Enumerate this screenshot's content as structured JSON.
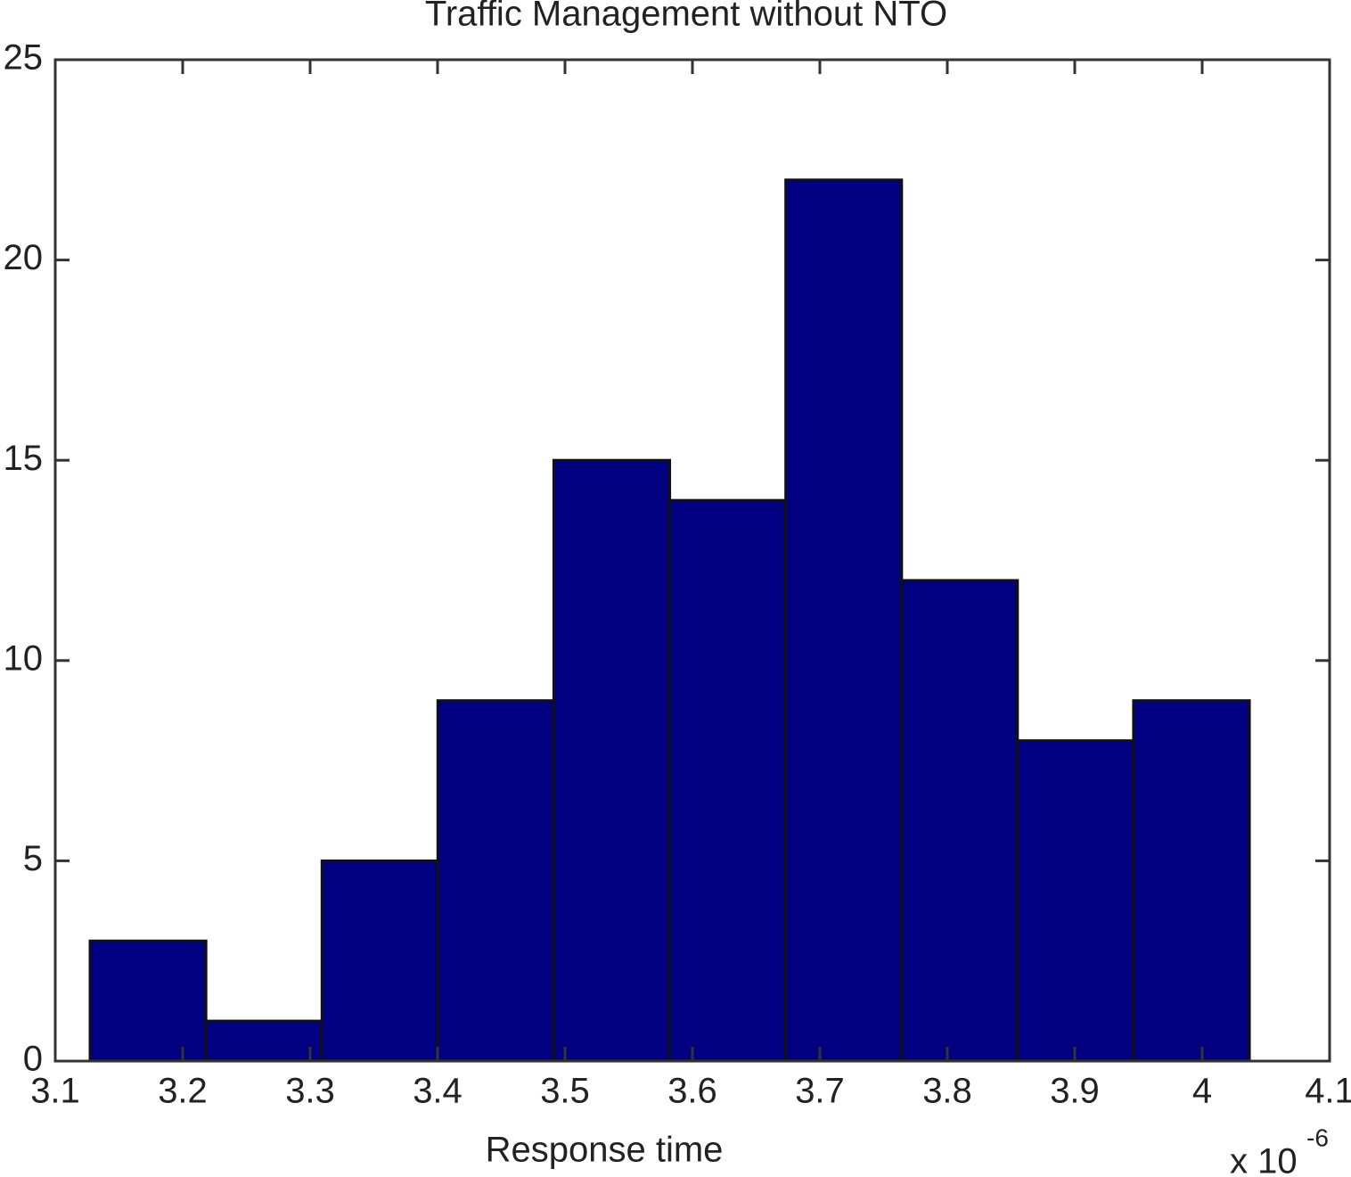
{
  "chart_data": {
    "type": "histogram",
    "title": "Traffic Management without NTO",
    "x_label": "Response time",
    "x_multiplier": {
      "base": "x 10",
      "exponent": "-6"
    },
    "bins": [
      3.1273,
      3.2183,
      3.3093,
      3.4002,
      3.4912,
      3.5822,
      3.6732,
      3.7642,
      3.8551,
      3.9461,
      4.0371
    ],
    "values": [
      3,
      1,
      5,
      9,
      15,
      14,
      22,
      12,
      8,
      9
    ],
    "color": "#000080",
    "xlim": [
      3.1,
      4.1
    ],
    "xticks": [
      3.1,
      3.2,
      3.3,
      3.4,
      3.5,
      3.6,
      3.7,
      3.8,
      3.9,
      4,
      4.1
    ],
    "ylim": [
      0,
      25
    ],
    "yticks": [
      0,
      5,
      10,
      15,
      20,
      25
    ],
    "grid": false
  }
}
